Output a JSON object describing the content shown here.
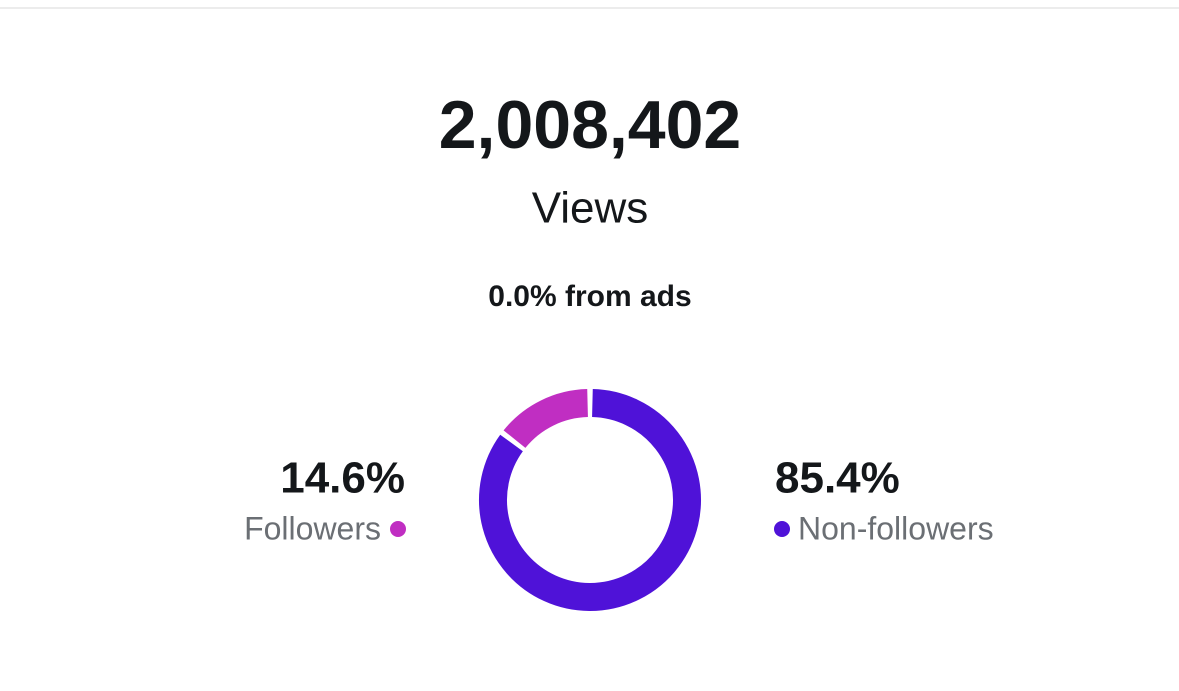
{
  "views": "2,008,402",
  "views_label": "Views",
  "ads_note": "0.0% from ads",
  "chart_data": {
    "type": "pie",
    "donut": true,
    "categories": [
      "Followers",
      "Non-followers"
    ],
    "values": [
      14.6,
      85.4
    ],
    "value_labels": [
      "14.6%",
      "85.4%"
    ],
    "colors": [
      "#c02ec2",
      "#4f12d8"
    ]
  }
}
